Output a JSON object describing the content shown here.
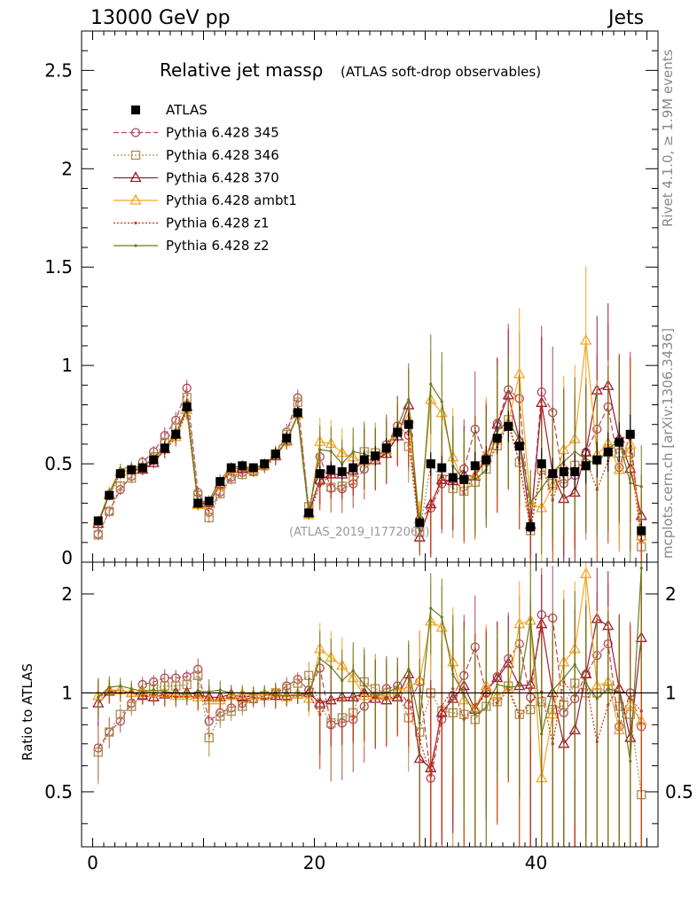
{
  "header": {
    "left": "13000 GeV pp",
    "right": "Jets"
  },
  "side_labels": {
    "rivet": "Rivet 4.1.0, ≥ 1.9M events",
    "mcplots": "mcplots.cern.ch [arXiv:1306.3436]"
  },
  "chart_data": {
    "type": "scatter",
    "title": "Relative jet massρ",
    "subtitle": "(ATLAS soft-drop observables)",
    "watermark": "(ATLAS_2019_I1772062)",
    "xlabel": "",
    "ylabel": "",
    "ratio_ylabel": "Ratio to ATLAS",
    "xlim": [
      -1,
      51
    ],
    "ylim": [
      0,
      2.7
    ],
    "ratio_ylim": [
      0.34,
      2.5
    ],
    "x_ticks": [
      "0",
      "20",
      "40"
    ],
    "y_ticks": [
      "0",
      "0.5",
      "1",
      "1.5",
      "2",
      "2.5"
    ],
    "ratio_y_ticks": [
      "0.5",
      "1",
      "2"
    ],
    "x": [
      0.5,
      1.5,
      2.5,
      3.5,
      4.5,
      5.5,
      6.5,
      7.5,
      8.5,
      9.5,
      10.5,
      11.5,
      12.5,
      13.5,
      14.5,
      15.5,
      16.5,
      17.5,
      18.5,
      19.5,
      20.5,
      21.5,
      22.5,
      23.5,
      24.5,
      25.5,
      26.5,
      27.5,
      28.5,
      29.5,
      30.5,
      31.5,
      32.5,
      33.5,
      34.5,
      35.5,
      36.5,
      37.5,
      38.5,
      39.5,
      40.5,
      41.5,
      42.5,
      43.5,
      44.5,
      45.5,
      46.5,
      47.5,
      48.5,
      49.5
    ],
    "reference": {
      "name": "ATLAS",
      "color": "#000000",
      "values": [
        0.21,
        0.34,
        0.45,
        0.47,
        0.48,
        0.52,
        0.58,
        0.65,
        0.79,
        0.3,
        0.31,
        0.41,
        0.48,
        0.49,
        0.48,
        0.5,
        0.55,
        0.63,
        0.76,
        0.25,
        0.45,
        0.47,
        0.46,
        0.48,
        0.52,
        0.54,
        0.58,
        0.66,
        0.7,
        0.2,
        0.5,
        0.48,
        0.43,
        0.42,
        0.49,
        0.52,
        0.63,
        0.69,
        0.59,
        0.18,
        0.5,
        0.45,
        0.46,
        0.46,
        0.49,
        0.52,
        0.56,
        0.61,
        0.65,
        0.16
      ],
      "errors": [
        0.02,
        0.02,
        0.02,
        0.02,
        0.02,
        0.02,
        0.03,
        0.03,
        0.03,
        0.02,
        0.02,
        0.02,
        0.02,
        0.02,
        0.02,
        0.02,
        0.03,
        0.03,
        0.03,
        0.02,
        0.04,
        0.04,
        0.04,
        0.04,
        0.05,
        0.05,
        0.05,
        0.05,
        0.06,
        0.03,
        0.06,
        0.06,
        0.06,
        0.06,
        0.07,
        0.07,
        0.08,
        0.08,
        0.08,
        0.04,
        0.08,
        0.08,
        0.09,
        0.09,
        0.09,
        0.09,
        0.1,
        0.1,
        0.1,
        0.05
      ]
    },
    "series": [
      {
        "name": "Pythia 6.428 345",
        "color": "#B0485A",
        "marker": "circle",
        "dash": "6,3",
        "ratios": [
          0.68,
          0.76,
          0.82,
          0.93,
          1.06,
          1.08,
          1.11,
          1.11,
          1.12,
          1.18,
          0.82,
          0.87,
          0.9,
          0.93,
          0.96,
          0.98,
          1.0,
          1.05,
          1.1,
          1.02,
          1.19,
          0.8,
          0.81,
          0.83,
          0.91,
          0.98,
          1.03,
          1.05,
          0.92,
          1.08,
          0.55,
          0.83,
          0.98,
          1.13,
          1.38,
          1.0,
          1.12,
          1.27,
          1.41,
          0.97,
          1.73,
          1.69,
          0.87,
          0.96,
          1.14,
          1.3,
          1.41,
          0.79,
          1.0,
          0.79
        ]
      },
      {
        "name": "Pythia 6.428 346",
        "color": "#B08A50",
        "marker": "square",
        "dash": "2,2",
        "ratios": [
          0.66,
          0.76,
          0.86,
          0.91,
          0.99,
          1.03,
          1.05,
          1.05,
          1.06,
          1.13,
          0.73,
          0.85,
          0.88,
          0.91,
          0.96,
          0.98,
          1.0,
          1.03,
          1.07,
          1.13,
          0.92,
          0.81,
          0.84,
          0.87,
          1.08,
          1.03,
          1.0,
          1.0,
          0.84,
          0.76,
          1.0,
          0.88,
          0.87,
          0.86,
          0.83,
          0.91,
          0.94,
          1.05,
          0.86,
          0.89,
          0.94,
          0.89,
          0.92,
          1.07,
          1.0,
          1.0,
          1.03,
          0.91,
          0.86,
          0.49
        ]
      },
      {
        "name": "Pythia 6.428 370",
        "color": "#9E1B32",
        "marker": "triangle",
        "dash": "",
        "ratios": [
          0.93,
          1.01,
          1.02,
          1.0,
          0.98,
          0.97,
          0.99,
          1.0,
          1.0,
          0.99,
          0.97,
          0.97,
          0.99,
          0.97,
          0.98,
          0.99,
          0.98,
          0.98,
          0.99,
          1.0,
          0.93,
          0.95,
          0.97,
          0.97,
          1.0,
          0.96,
          0.95,
          0.97,
          1.14,
          0.63,
          0.59,
          0.87,
          0.96,
          1.05,
          0.89,
          1.02,
          1.11,
          1.23,
          1.05,
          1.06,
          1.62,
          1.0,
          0.7,
          0.77,
          1.14,
          1.68,
          1.6,
          1.03,
          0.73,
          1.47
        ]
      },
      {
        "name": "Pythia 6.428 ambt1",
        "color": "#F5A623",
        "marker": "triangle",
        "dash": "",
        "ratios": [
          0.98,
          1.02,
          1.02,
          1.0,
          1.01,
          1.0,
          1.0,
          0.98,
          0.98,
          0.97,
          0.95,
          0.95,
          0.98,
          0.99,
          0.98,
          0.99,
          1.0,
          0.97,
          0.99,
          0.96,
          1.36,
          1.28,
          1.21,
          1.11,
          0.98,
          0.98,
          0.98,
          1.02,
          1.04,
          1.09,
          1.65,
          1.58,
          1.24,
          0.95,
          0.9,
          1.05,
          0.98,
          1.03,
          1.62,
          1.66,
          0.55,
          0.86,
          1.24,
          1.36,
          2.3,
          1.05,
          1.08,
          0.77,
          0.92,
          0.82
        ]
      },
      {
        "name": "Pythia 6.428 z1",
        "color": "#CC3300",
        "marker": "dot",
        "dash": "2,2",
        "ratios": [
          0.97,
          1.01,
          1.0,
          1.01,
          0.98,
          0.99,
          0.98,
          0.97,
          0.97,
          0.98,
          0.96,
          0.96,
          0.97,
          0.95,
          0.97,
          0.96,
          0.97,
          0.98,
          0.98,
          0.99,
          0.86,
          0.95,
          0.96,
          0.96,
          1.01,
          0.97,
          0.96,
          0.98,
          0.95,
          0.72,
          0.56,
          0.91,
          1.03,
          0.83,
          0.92,
          0.98,
          0.93,
          1.02,
          0.85,
          0.94,
          1.01,
          0.7,
          1.08,
          0.98,
          1.07,
          0.71,
          0.92,
          1.05,
          0.96,
          0.88
        ]
      },
      {
        "name": "Pythia 6.428 z2",
        "color": "#6B7A1A",
        "marker": "dot",
        "dash": "",
        "ratios": [
          0.97,
          1.04,
          1.05,
          1.03,
          1.01,
          1.02,
          1.01,
          1.0,
          0.99,
          1.01,
          1.01,
          1.02,
          1.0,
          1.0,
          0.99,
          1.0,
          0.99,
          0.98,
          0.98,
          0.99,
          1.27,
          1.2,
          1.09,
          1.17,
          1.06,
          0.98,
          1.0,
          1.04,
          1.18,
          0.81,
          1.81,
          1.7,
          1.14,
          0.99,
          0.86,
          0.9,
          1.06,
          1.04,
          1.05,
          1.67,
          0.75,
          1.02,
          1.11,
          1.22,
          1.07,
          0.96,
          1.03,
          1.01,
          0.62,
          2.4
        ]
      }
    ],
    "legend": [
      "ATLAS",
      "Pythia 6.428 345",
      "Pythia 6.428 346",
      "Pythia 6.428 370",
      "Pythia 6.428 ambt1",
      "Pythia 6.428 z1",
      "Pythia 6.428 z2"
    ]
  }
}
